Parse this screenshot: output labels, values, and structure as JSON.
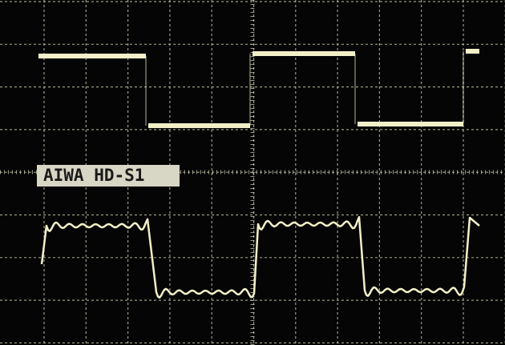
{
  "label": "AIWA HD-S1"
}
